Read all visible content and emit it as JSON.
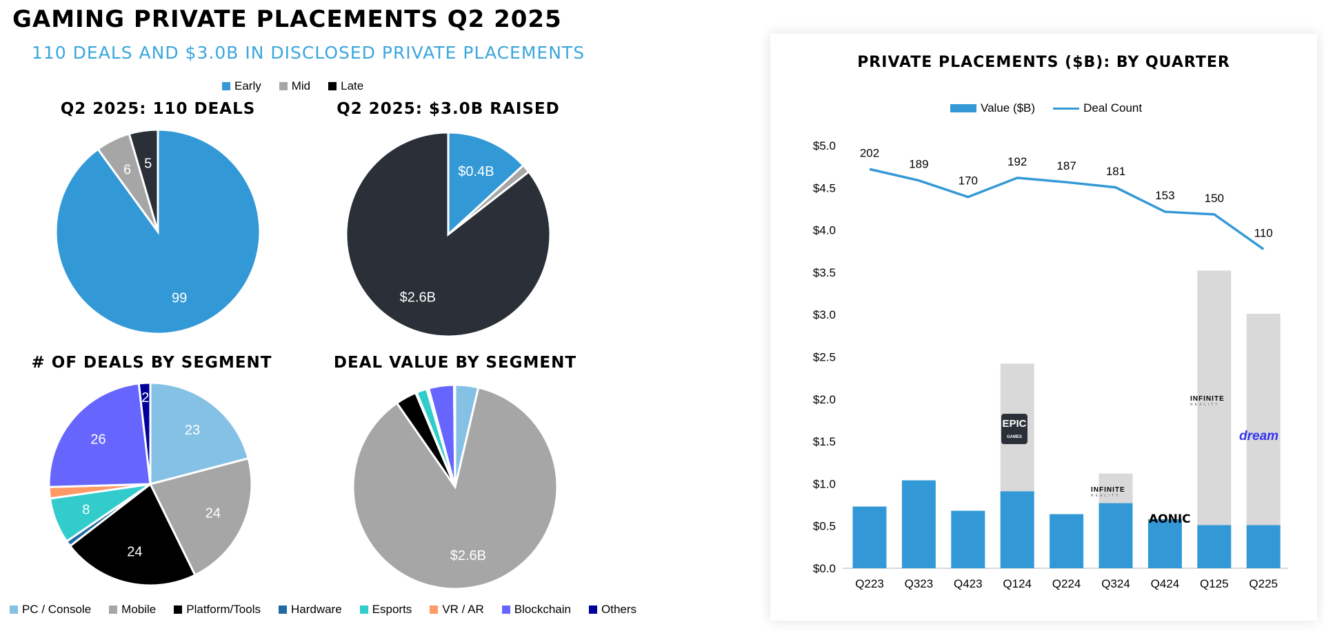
{
  "header": {
    "title": "GAMING PRIVATE PLACEMENTS Q2 2025",
    "subtitle": "110 DEALS AND $3.0B IN DISCLOSED PRIVATE PLACEMENTS"
  },
  "stage_legend": [
    {
      "label": "Early",
      "color": "#3399d6"
    },
    {
      "label": "Mid",
      "color": "#a6a6a6"
    },
    {
      "label": "Late",
      "color": "#000000"
    }
  ],
  "segment_legend": [
    {
      "label": "PC / Console",
      "color": "#85c1e5"
    },
    {
      "label": "Mobile",
      "color": "#a6a6a6"
    },
    {
      "label": "Platform/Tools",
      "color": "#000000"
    },
    {
      "label": "Hardware",
      "color": "#1f6aa5"
    },
    {
      "label": "Esports",
      "color": "#33cccc"
    },
    {
      "label": "VR / AR",
      "color": "#ff9966"
    },
    {
      "label": "Blockchain",
      "color": "#6666ff"
    },
    {
      "label": "Others",
      "color": "#000099"
    }
  ],
  "logos": {
    "epic": "EPIC",
    "epic_sub": "GAMES",
    "infinite": "INFINITE",
    "infinite_sub": "REALITY",
    "aonic": "AONIC",
    "dream": "dream"
  },
  "chart_data": [
    {
      "type": "pie",
      "title": "Q2 2025: 110 DEALS",
      "categories": [
        "Early",
        "Mid",
        "Late"
      ],
      "values": [
        99,
        6,
        5
      ],
      "labels": [
        "99",
        "6",
        "5"
      ],
      "colors": [
        "#3399d6",
        "#a6a6a6",
        "#2b3038"
      ]
    },
    {
      "type": "pie",
      "title": "Q2 2025: $3.0B RAISED",
      "categories": [
        "Early",
        "Mid",
        "Late"
      ],
      "values": [
        0.4,
        0.04,
        2.6
      ],
      "labels": [
        "$0.4B",
        "",
        "$2.6B"
      ],
      "colors": [
        "#3399d6",
        "#a6a6a6",
        "#2b3038"
      ]
    },
    {
      "type": "pie",
      "title": "# OF DEALS BY SEGMENT",
      "categories": [
        "PC / Console",
        "Mobile",
        "Platform/Tools",
        "Hardware",
        "Esports",
        "VR / AR",
        "Blockchain",
        "Others"
      ],
      "values": [
        23,
        24,
        24,
        1,
        8,
        2,
        26,
        2
      ],
      "labels": [
        "23",
        "24",
        "24",
        "",
        "8",
        "",
        "26",
        "2"
      ],
      "colors": [
        "#85c1e5",
        "#a6a6a6",
        "#000000",
        "#1f6aa5",
        "#33cccc",
        "#ff9966",
        "#6666ff",
        "#000099"
      ]
    },
    {
      "type": "pie",
      "title": "DEAL VALUE BY SEGMENT",
      "categories": [
        "PC / Console",
        "Mobile",
        "Platform/Tools",
        "Hardware",
        "Esports",
        "VR / AR",
        "Blockchain",
        "Others"
      ],
      "values": [
        0.11,
        2.6,
        0.1,
        0.005,
        0.05,
        0.01,
        0.12,
        0.005
      ],
      "labels": [
        "",
        "$2.6B",
        "",
        "",
        "",
        "",
        "",
        ""
      ],
      "colors": [
        "#85c1e5",
        "#a6a6a6",
        "#000000",
        "#1f6aa5",
        "#33cccc",
        "#ff9966",
        "#6666ff",
        "#000099"
      ]
    },
    {
      "type": "bar+line",
      "title": "PRIVATE PLACEMENTS ($B): BY QUARTER",
      "categories": [
        "Q223",
        "Q323",
        "Q423",
        "Q124",
        "Q224",
        "Q324",
        "Q424",
        "Q125",
        "Q225"
      ],
      "series": [
        {
          "name": "Value ($B)",
          "type": "bar",
          "values": [
            0.73,
            1.04,
            0.68,
            0.91,
            0.64,
            0.77,
            0.58,
            0.51,
            0.51
          ],
          "color": "#3399d6"
        },
        {
          "type": "bar",
          "values": [
            0,
            0,
            0,
            1.51,
            0,
            0.35,
            0,
            3.01,
            2.5
          ],
          "color": "#d9d9d9"
        },
        {
          "name": "Deal Count",
          "type": "line",
          "values": [
            202,
            189,
            170,
            192,
            187,
            181,
            153,
            150,
            110
          ],
          "color": "#3399d6"
        }
      ],
      "y_ticks": [
        "$0.0",
        "$0.5",
        "$1.0",
        "$1.5",
        "$2.0",
        "$2.5",
        "$3.0",
        "$3.5",
        "$4.0",
        "$4.5",
        "$5.0"
      ],
      "ylim": [
        0,
        5
      ],
      "grid": false,
      "legend": "top"
    }
  ]
}
